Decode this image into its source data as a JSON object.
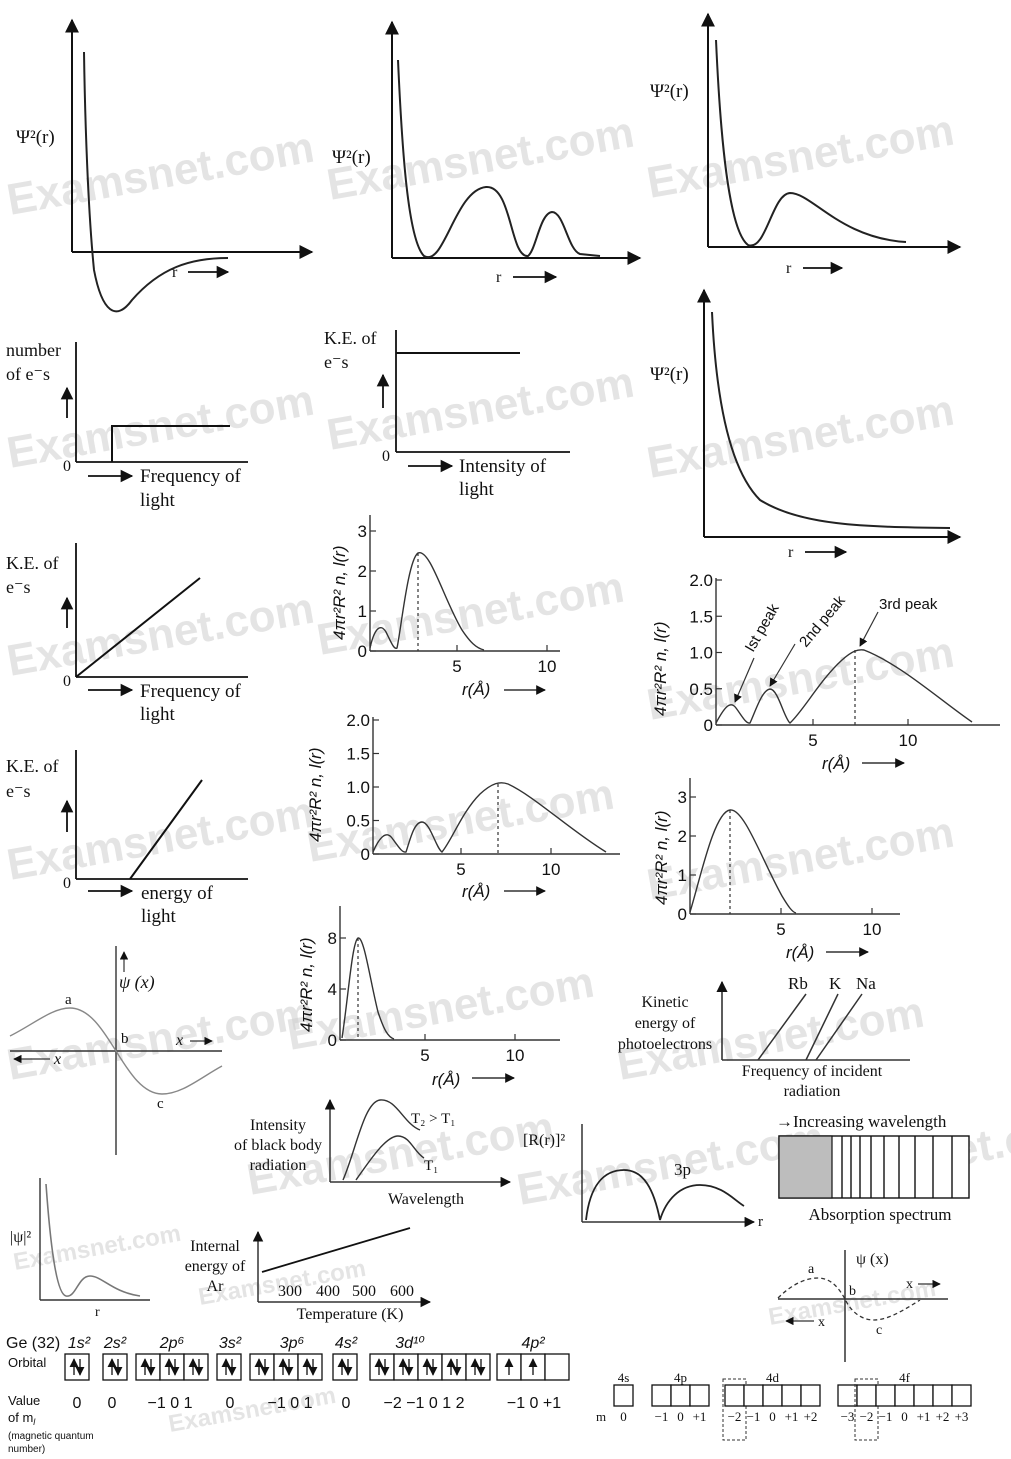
{
  "watermark": "Examsnet.com",
  "psi2_label": "Ψ²(r)",
  "r_label": "r",
  "pe_number_label": [
    "number",
    "of e⁻s"
  ],
  "pe_ke_label": [
    "K.E. of",
    "e⁻s"
  ],
  "zero": "0",
  "freq_label": [
    "Frequency of",
    "light"
  ],
  "intensity_label": [
    "Intensity of",
    "light"
  ],
  "energy_label": [
    "energy of",
    "light"
  ],
  "rdf_ylabel": "4πr²R² n, l(r)",
  "rdf_xlabel": "r(Å)",
  "rdf_a": {
    "yticks": [
      "0",
      "1",
      "2",
      "3"
    ],
    "xticks": [
      "5",
      "10"
    ]
  },
  "rdf_b": {
    "yticks": [
      "0",
      "0.5",
      "1.0",
      "1.5",
      "2.0"
    ],
    "xticks": [
      "5",
      "10"
    ]
  },
  "rdf_c": {
    "yticks": [
      "0",
      "0.5",
      "1.0",
      "1.5",
      "2.0"
    ],
    "xticks": [
      "5",
      "10"
    ],
    "annotations": [
      "Ist peak",
      "2nd peak",
      "3rd peak"
    ]
  },
  "rdf_d": {
    "yticks": [
      "0",
      "1",
      "2",
      "3"
    ],
    "xticks": [
      "5",
      "10"
    ]
  },
  "rdf_e": {
    "yticks": [
      "0",
      "4",
      "8"
    ],
    "xticks": [
      "5",
      "10"
    ]
  },
  "psi_x": {
    "ylabel": "ψ (x)",
    "a": "a",
    "b": "b",
    "c": "c",
    "xpos": "x",
    "xneg": "x"
  },
  "photo": {
    "ylabel": [
      "Kinetic",
      "energy of",
      "photoelectrons"
    ],
    "xlabel": [
      "Frequency of incident",
      "radiation"
    ],
    "metals": [
      "Rb",
      "K",
      "Na"
    ]
  },
  "blackbody": {
    "ylabel": [
      "Intensity",
      "of black body",
      "radiation"
    ],
    "xlabel": "Wavelength",
    "t2": "T₂ > T₁",
    "t1": "T₁"
  },
  "radial3p": {
    "ylabel": "[R(r)]²",
    "label": "3p",
    "xlabel": "r"
  },
  "absorption": {
    "top": "→Increasing wavelength",
    "bottom": "Absorption spectrum"
  },
  "psi_abs": {
    "ylabel": "|ψ|²",
    "xlabel": "r"
  },
  "argon": {
    "ylabel": [
      "Internal",
      "energy of",
      "Ar"
    ],
    "xlabel": "Temperature (K)",
    "ticks": [
      "300",
      "400",
      "500",
      "600"
    ]
  },
  "ge": {
    "title": "Ge (32)",
    "orbital_label": "Orbital",
    "value_label": [
      "Value",
      "of m"
    ],
    "value_sub": "l",
    "value_note": [
      "(magnetic quantum",
      "number)"
    ],
    "subshells": [
      "1s²",
      "2s²",
      "2p⁶",
      "3s²",
      "3p⁶",
      "4s²",
      "3d¹⁰",
      "4p²"
    ],
    "mvalues": [
      "0",
      "0",
      "−1 0  1",
      "0",
      "−1 0  1",
      "0",
      "−2 −1  0  1  2",
      "−1   0  +1"
    ]
  },
  "orb_boxes": {
    "labels": [
      "4s",
      "4p",
      "4d",
      "4f"
    ],
    "m_label": "m",
    "s_vals": [
      "0"
    ],
    "p_vals": [
      "−1",
      "0",
      "+1"
    ],
    "d_vals": [
      "−2",
      "−1",
      "0",
      "+1",
      "+2"
    ],
    "f_vals": [
      "−3",
      "−2",
      "−1",
      "0",
      "+1",
      "+2",
      "+3"
    ]
  }
}
